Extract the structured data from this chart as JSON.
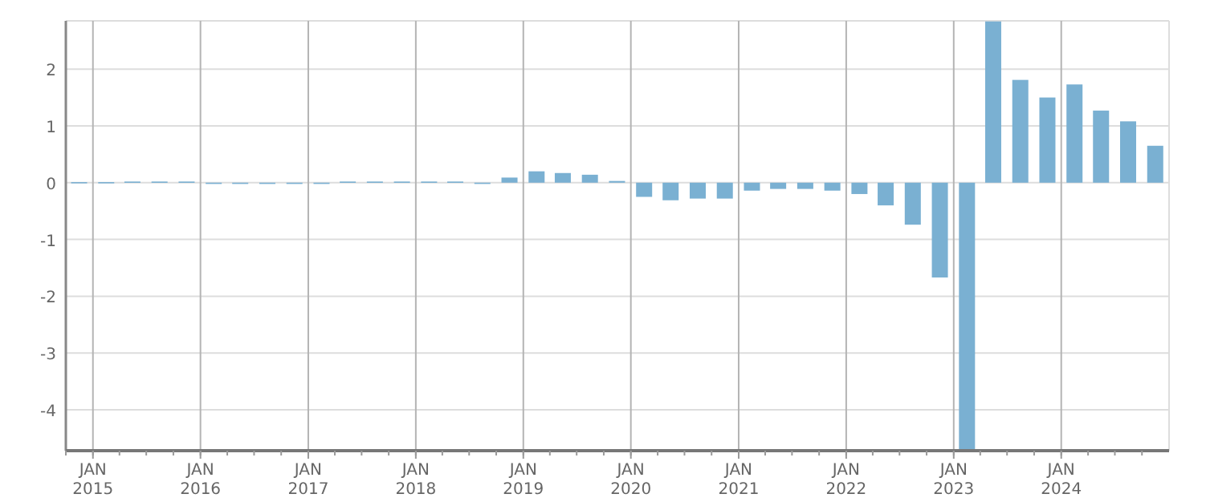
{
  "chart_data": {
    "type": "bar",
    "x": [
      "2014-11-15",
      "2015-02-15",
      "2015-05-15",
      "2015-08-15",
      "2015-11-15",
      "2016-02-15",
      "2016-05-15",
      "2016-08-15",
      "2016-11-15",
      "2017-02-15",
      "2017-05-15",
      "2017-08-15",
      "2017-11-15",
      "2018-02-15",
      "2018-05-15",
      "2018-08-15",
      "2018-11-15",
      "2019-02-15",
      "2019-05-15",
      "2019-08-15",
      "2019-11-15",
      "2020-02-15",
      "2020-05-15",
      "2020-08-15",
      "2020-11-15",
      "2021-02-15",
      "2021-05-15",
      "2021-08-15",
      "2021-11-15",
      "2022-02-15",
      "2022-05-15",
      "2022-08-15",
      "2022-11-15",
      "2023-02-15",
      "2023-05-15",
      "2023-08-15",
      "2023-11-15",
      "2024-02-15",
      "2024-05-15",
      "2024-08-15",
      "2024-11-15"
    ],
    "values": [
      0.01,
      0.01,
      0.02,
      0.02,
      0.02,
      -0.01,
      -0.01,
      -0.01,
      -0.01,
      -0.01,
      0.02,
      0.02,
      0.02,
      0.02,
      0.02,
      -0.01,
      0.09,
      0.2,
      0.17,
      0.14,
      0.03,
      -0.25,
      -0.31,
      -0.28,
      -0.28,
      -0.14,
      -0.11,
      -0.11,
      -0.14,
      -0.2,
      -0.4,
      -0.74,
      -1.67,
      -4.7,
      2.84,
      1.81,
      1.5,
      1.73,
      1.27,
      1.08,
      0.65
    ],
    "color": "#7ab0d2",
    "xlim": [
      "2014-10-01",
      "2025-01-01"
    ],
    "xticks": [
      {
        "value": "2015-01-01",
        "label": "JAN 2015"
      },
      {
        "value": "2016-01-01",
        "label": "JAN 2016"
      },
      {
        "value": "2017-01-01",
        "label": "JAN 2017"
      },
      {
        "value": "2018-01-01",
        "label": "JAN 2018"
      },
      {
        "value": "2019-01-01",
        "label": "JAN 2019"
      },
      {
        "value": "2020-01-01",
        "label": "JAN 2020"
      },
      {
        "value": "2021-01-01",
        "label": "JAN 2021"
      },
      {
        "value": "2022-01-01",
        "label": "JAN 2022"
      },
      {
        "value": "2023-01-01",
        "label": "JAN 2023"
      },
      {
        "value": "2024-01-01",
        "label": "JAN 2024"
      }
    ],
    "ylim": [
      -4.72,
      2.85
    ],
    "yticks": [
      -4,
      -3,
      -2,
      -1,
      0,
      1,
      2
    ],
    "grid": true
  }
}
